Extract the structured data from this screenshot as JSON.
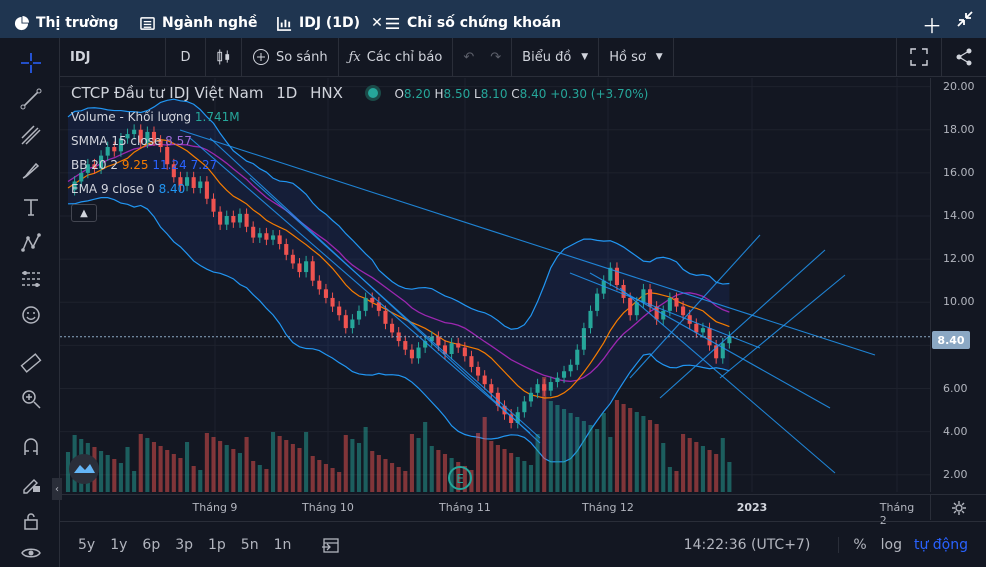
{
  "tabs": [
    {
      "label": "Thị trường",
      "icon": "pie-chart-icon"
    },
    {
      "label": "Ngành nghề",
      "icon": "list-icon"
    },
    {
      "label": "IDJ (1D)",
      "icon": "chart-icon"
    },
    {
      "label": "Chỉ số chứng khoán",
      "icon": "menu-icon"
    }
  ],
  "toolbar": {
    "symbol": "IDJ",
    "interval": "D",
    "compare": "So sánh",
    "indicators": "Các chỉ báo",
    "chart_type": "Biểu đồ",
    "profile": "Hồ sơ"
  },
  "legend": {
    "title": "CTCP Đầu tư IDJ Việt Nam",
    "interval": "1D",
    "exchange": "HNX",
    "o_label": "O",
    "o": "8.20",
    "h_label": "H",
    "h": "8.50",
    "l_label": "L",
    "l": "8.10",
    "c_label": "C",
    "c": "8.40",
    "change": "+0.30 (+3.70%)",
    "volume_label": "Volume - Khối lượng",
    "volume_value": "1.741M",
    "smma_label": "SMMA 15 close",
    "smma_value": "8.57",
    "bb_label": "BB 20 2",
    "bb_values": [
      "9.25",
      "11.24",
      "7.27"
    ],
    "ema_label": "EMA 9 close 0",
    "ema_value": "8.40"
  },
  "chart_data": {
    "type": "candlestick",
    "y_ticks": [
      "20.00",
      "18.00",
      "16.00",
      "14.00",
      "12.00",
      "10.00",
      "8.00",
      "6.00",
      "4.00",
      "2.00"
    ],
    "ylim": [
      1.2,
      20.4
    ],
    "x_ticks": [
      "Tháng 9",
      "Tháng 10",
      "Tháng 11",
      "Tháng 12",
      "2023",
      "Tháng 2"
    ],
    "last_price": "8.40",
    "colors": {
      "up": "#26a69a",
      "down": "#ef5350",
      "band": "#2962ff",
      "smma": "#9c27b0",
      "ema": "#f57c00"
    }
  },
  "bottom": {
    "timeframes": [
      "5y",
      "1y",
      "6p",
      "3p",
      "1p",
      "5n",
      "1n"
    ],
    "time": "14:22:36 (UTC+7)",
    "percent": "%",
    "log": "log",
    "auto": "tự động"
  }
}
